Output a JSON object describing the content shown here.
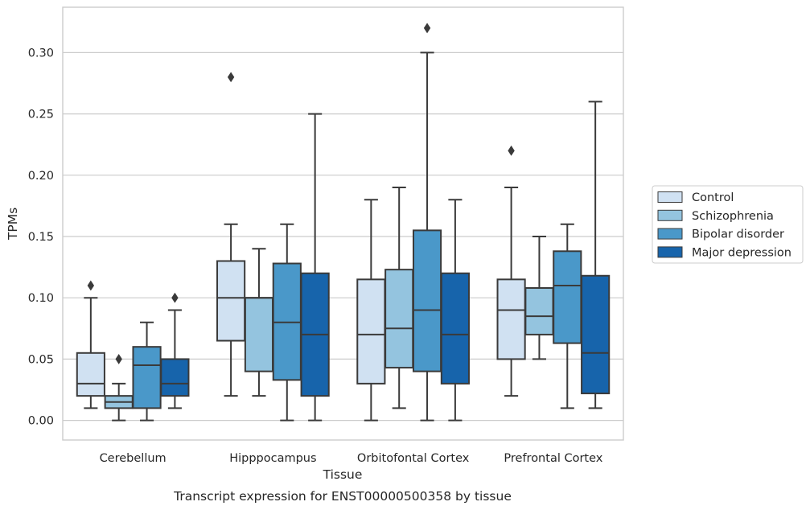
{
  "caption": "Transcript expression for ENST00000500358 by tissue",
  "chart_data": {
    "type": "box",
    "title": "",
    "xlabel": "Tissue",
    "ylabel": "TPMs",
    "ylim": [
      -0.016,
      0.337
    ],
    "yticks": [
      0.0,
      0.05,
      0.1,
      0.15,
      0.2,
      0.25,
      0.3
    ],
    "ytick_labels": [
      "0.00",
      "0.05",
      "0.10",
      "0.15",
      "0.20",
      "0.25",
      "0.30"
    ],
    "grid": true,
    "legend_position": "right",
    "categories": [
      "Cerebellum",
      "Hipppocampus",
      "Orbitofontal Cortex",
      "Prefrontal Cortex"
    ],
    "series": [
      {
        "name": "Control",
        "color": "#d0e1f2",
        "boxes": [
          {
            "whislo": 0.01,
            "q1": 0.02,
            "med": 0.03,
            "q3": 0.055,
            "whishi": 0.1,
            "fliers": [
              0.11
            ]
          },
          {
            "whislo": 0.02,
            "q1": 0.065,
            "med": 0.1,
            "q3": 0.13,
            "whishi": 0.16,
            "fliers": [
              0.28
            ]
          },
          {
            "whislo": 0.0,
            "q1": 0.03,
            "med": 0.07,
            "q3": 0.115,
            "whishi": 0.18,
            "fliers": []
          },
          {
            "whislo": 0.02,
            "q1": 0.05,
            "med": 0.09,
            "q3": 0.115,
            "whishi": 0.19,
            "fliers": [
              0.22
            ]
          }
        ]
      },
      {
        "name": "Schizophrenia",
        "color": "#94c4df",
        "boxes": [
          {
            "whislo": 0.0,
            "q1": 0.01,
            "med": 0.015,
            "q3": 0.02,
            "whishi": 0.03,
            "fliers": [
              0.05
            ]
          },
          {
            "whislo": 0.02,
            "q1": 0.04,
            "med": 0.1,
            "q3": 0.1,
            "whishi": 0.14,
            "fliers": []
          },
          {
            "whislo": 0.01,
            "q1": 0.043,
            "med": 0.075,
            "q3": 0.123,
            "whishi": 0.19,
            "fliers": []
          },
          {
            "whislo": 0.05,
            "q1": 0.07,
            "med": 0.085,
            "q3": 0.108,
            "whishi": 0.15,
            "fliers": []
          }
        ]
      },
      {
        "name": "Bipolar disorder",
        "color": "#4a98c9",
        "boxes": [
          {
            "whislo": 0.0,
            "q1": 0.01,
            "med": 0.045,
            "q3": 0.06,
            "whishi": 0.08,
            "fliers": []
          },
          {
            "whislo": 0.0,
            "q1": 0.033,
            "med": 0.08,
            "q3": 0.128,
            "whishi": 0.16,
            "fliers": []
          },
          {
            "whislo": 0.0,
            "q1": 0.04,
            "med": 0.09,
            "q3": 0.155,
            "whishi": 0.3,
            "fliers": [
              0.32
            ]
          },
          {
            "whislo": 0.01,
            "q1": 0.063,
            "med": 0.11,
            "q3": 0.138,
            "whishi": 0.16,
            "fliers": []
          }
        ]
      },
      {
        "name": "Major depression",
        "color": "#1764ab",
        "boxes": [
          {
            "whislo": 0.01,
            "q1": 0.02,
            "med": 0.03,
            "q3": 0.05,
            "whishi": 0.09,
            "fliers": [
              0.1
            ]
          },
          {
            "whislo": 0.0,
            "q1": 0.02,
            "med": 0.07,
            "q3": 0.12,
            "whishi": 0.25,
            "fliers": []
          },
          {
            "whislo": 0.0,
            "q1": 0.03,
            "med": 0.07,
            "q3": 0.12,
            "whishi": 0.18,
            "fliers": []
          },
          {
            "whislo": 0.01,
            "q1": 0.022,
            "med": 0.055,
            "q3": 0.118,
            "whishi": 0.26,
            "fliers": []
          }
        ]
      }
    ]
  }
}
